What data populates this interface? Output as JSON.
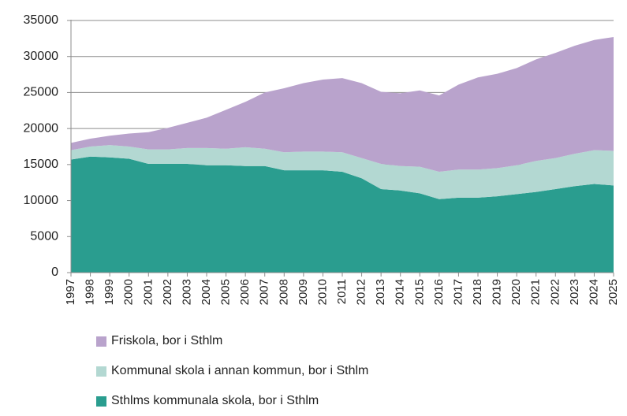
{
  "chart_data": {
    "type": "area",
    "stacked": true,
    "x": [
      1997,
      1998,
      1999,
      2000,
      2001,
      2002,
      2003,
      2004,
      2005,
      2006,
      2007,
      2008,
      2009,
      2010,
      2011,
      2012,
      2013,
      2014,
      2015,
      2016,
      2017,
      2018,
      2019,
      2020,
      2021,
      2022,
      2023,
      2024,
      2025
    ],
    "x_tick_labels": [
      "1997",
      "1998",
      "1999",
      "2000",
      "2001",
      "2002",
      "2003",
      "2004",
      "2005",
      "2006",
      "2007",
      "2008",
      "2009",
      "2010",
      "2011",
      "2012",
      "2013",
      "2014",
      "2015",
      "2016",
      "2017",
      "2018",
      "2019",
      "2020",
      "2021",
      "2022",
      "2023",
      "2024",
      "2025"
    ],
    "ylim": [
      0,
      35000
    ],
    "y_ticks": [
      0,
      5000,
      10000,
      15000,
      20000,
      25000,
      30000,
      35000
    ],
    "y_tick_labels": [
      "0",
      "5000",
      "10000",
      "15000",
      "20000",
      "25000",
      "30000",
      "35000"
    ],
    "grid": "horizontal",
    "legend_position": "bottom-left",
    "series": [
      {
        "name": "Sthlms kommunala skola, bor i Sthlm",
        "color": "#2a9d8f",
        "values": [
          15700,
          16100,
          16000,
          15800,
          15100,
          15100,
          15100,
          14900,
          14900,
          14800,
          14800,
          14200,
          14200,
          14200,
          14000,
          13100,
          11600,
          11400,
          11000,
          10200,
          10400,
          10400,
          10600,
          10900,
          11200,
          11600,
          12000,
          12300,
          12100
        ]
      },
      {
        "name": "Kommunal skola i annan kommun, bor i Sthlm",
        "color": "#b3d8d2",
        "values": [
          1300,
          1400,
          1700,
          1700,
          2000,
          2000,
          2200,
          2400,
          2300,
          2600,
          2400,
          2500,
          2600,
          2600,
          2700,
          2800,
          3500,
          3400,
          3700,
          3800,
          3900,
          3900,
          3900,
          4000,
          4300,
          4300,
          4500,
          4700,
          4800
        ]
      },
      {
        "name": "Friskola, bor i Sthlm",
        "color": "#b9a3cc",
        "values": [
          1000,
          1100,
          1300,
          1800,
          2400,
          3000,
          3500,
          4200,
          5400,
          6300,
          7800,
          8900,
          9500,
          10000,
          10300,
          10400,
          10000,
          10100,
          10600,
          10600,
          11800,
          12800,
          13100,
          13500,
          14100,
          14600,
          15000,
          15300,
          15800
        ]
      }
    ],
    "legend_order": [
      2,
      1,
      0
    ]
  }
}
